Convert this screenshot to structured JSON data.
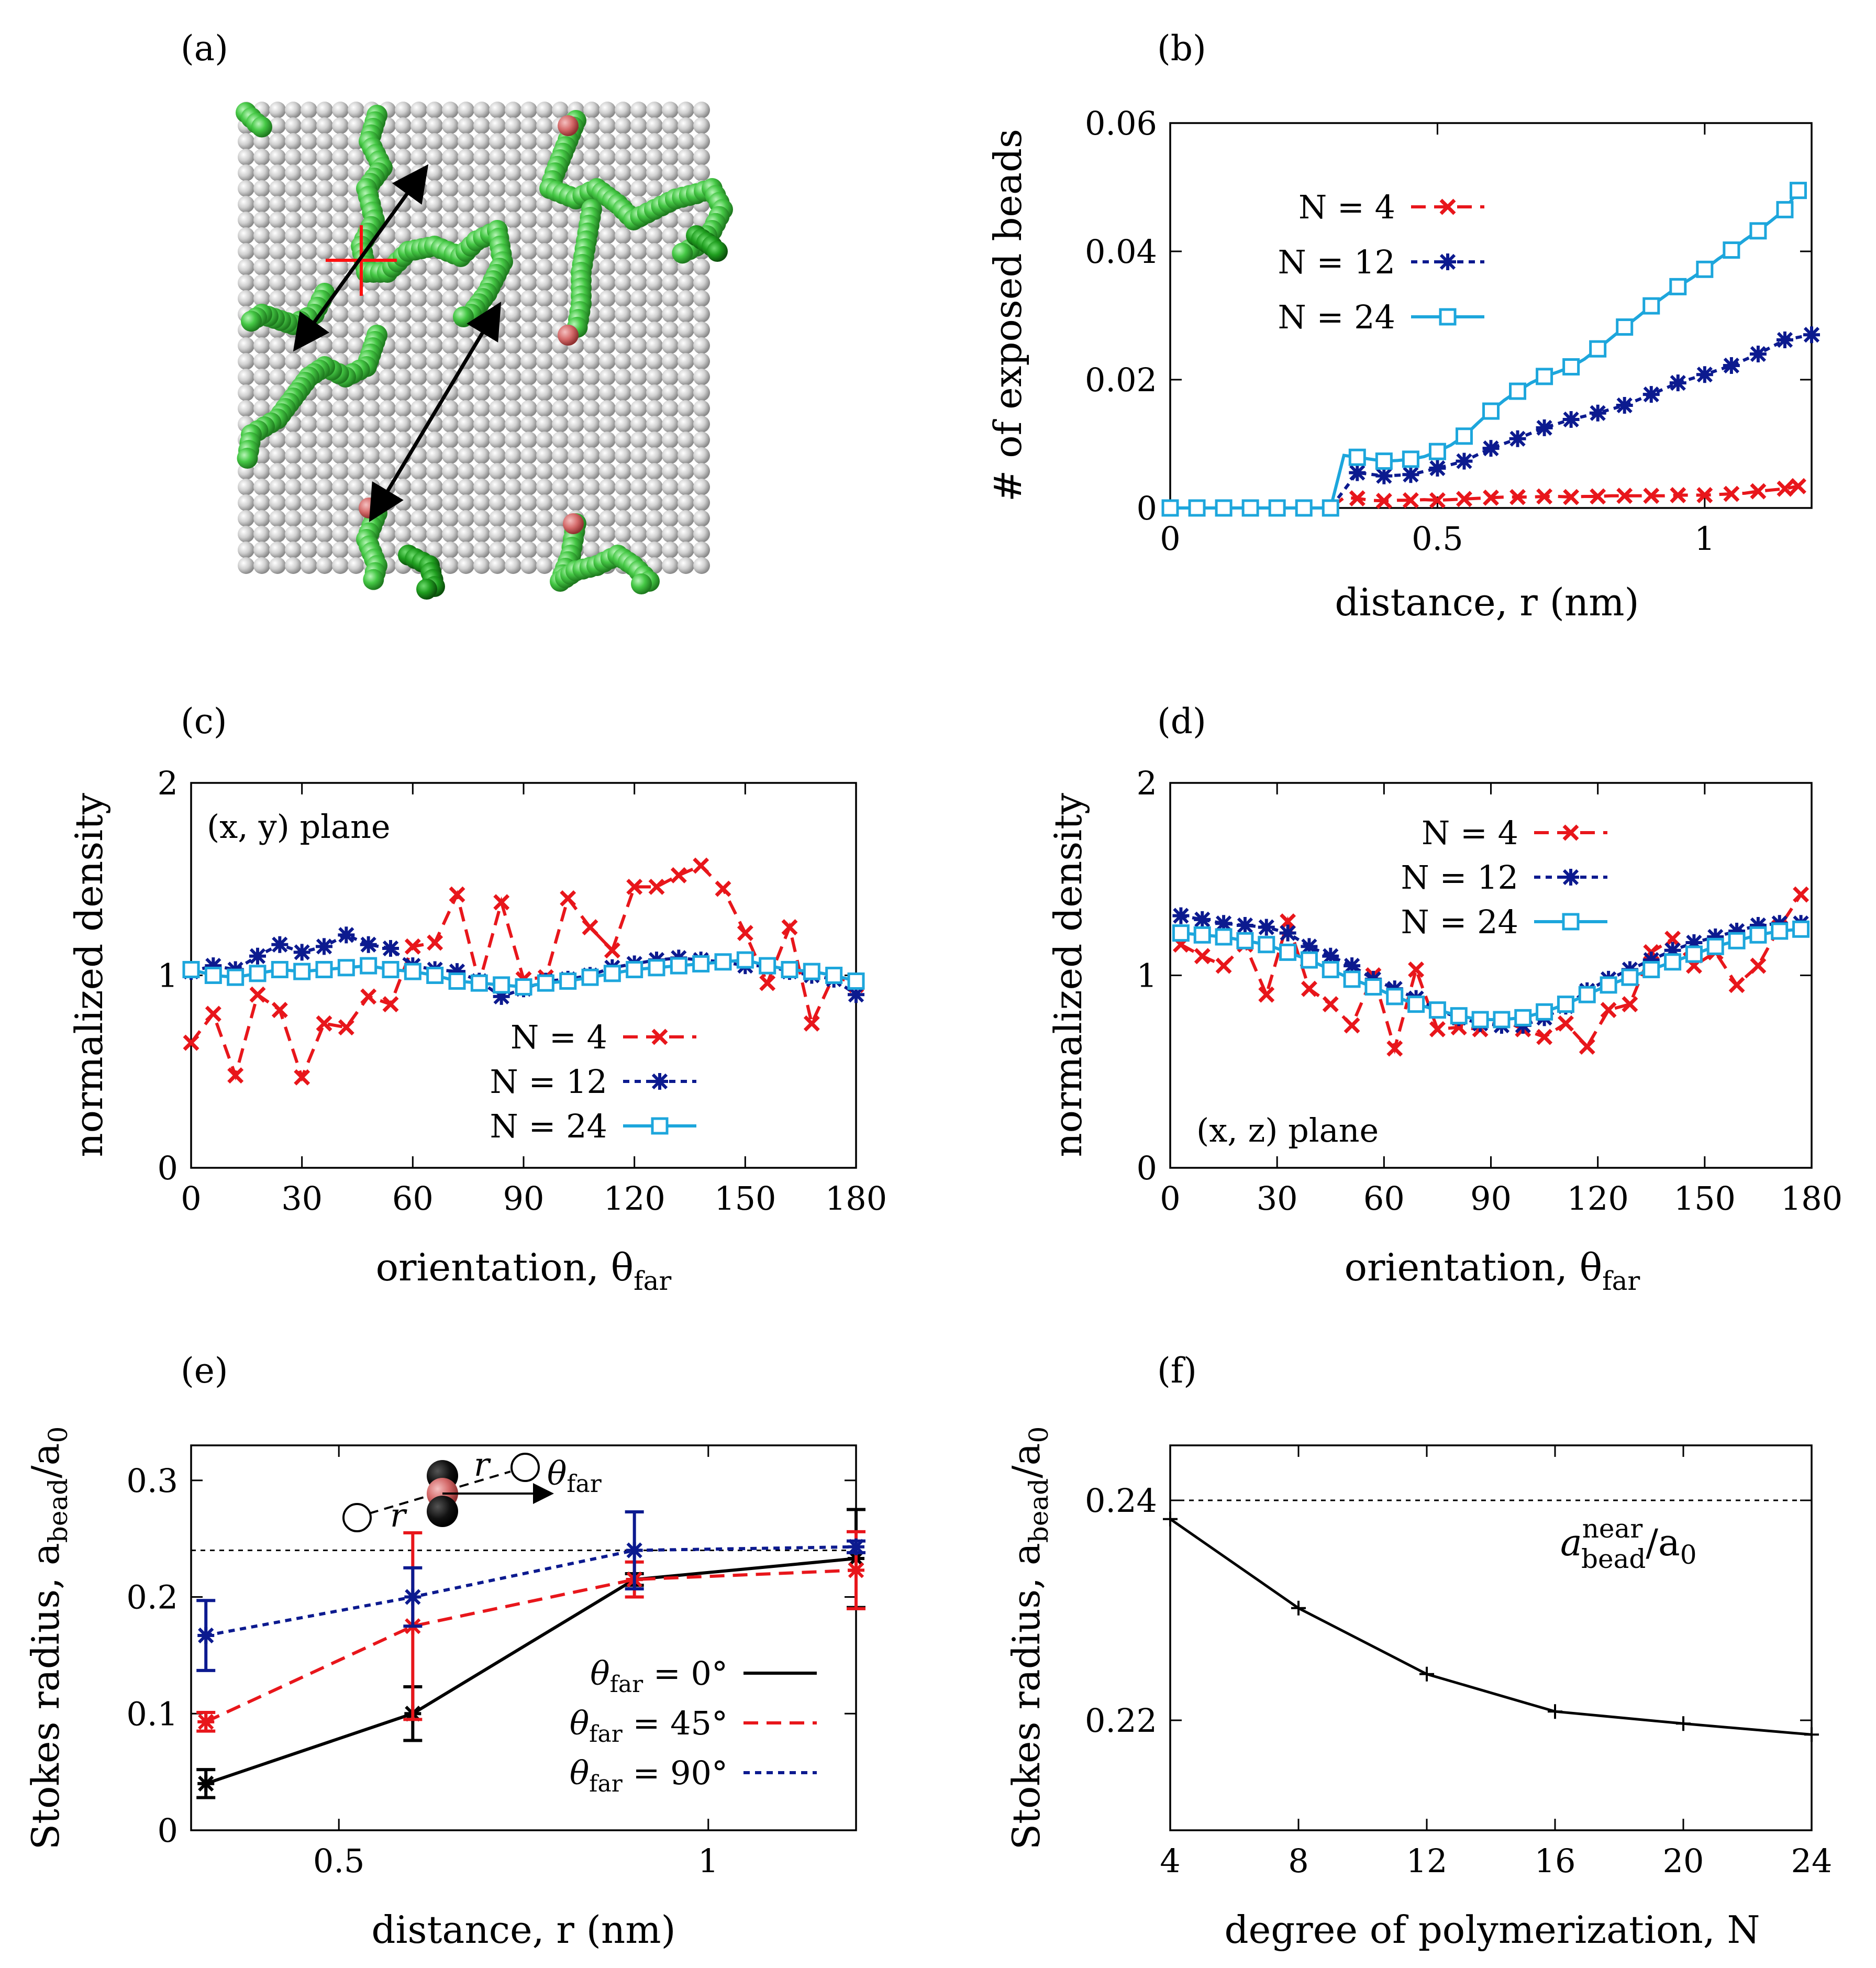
{
  "figure": {
    "panel_labels": [
      "(a)",
      "(b)",
      "(c)",
      "(d)",
      "(e)",
      "(f)"
    ]
  },
  "colors": {
    "n4": "#e8161b",
    "n12": "#0c1a8f",
    "n24": "#1da6dc",
    "black": "#000000",
    "sphere_gray": "#c8c8c8",
    "polymer_green": "#4bcf4b",
    "polymer_red": "#d66a6a"
  },
  "panel_a": {
    "description_icons": [
      "gray-bead-surface",
      "green-polymer-chains",
      "red-cross-marker",
      "double-arrows"
    ]
  },
  "chart_data": [
    {
      "id": "b",
      "type": "line",
      "title": "",
      "xlabel": "distance, r (nm)",
      "ylabel": "# of exposed beads",
      "xlim": [
        0,
        1.2
      ],
      "ylim": [
        0,
        0.06
      ],
      "xticks": [
        0,
        0.5,
        1
      ],
      "xtick_labels": [
        "0",
        "0.5",
        "1"
      ],
      "yticks": [
        0,
        0.02,
        0.04,
        0.06
      ],
      "ytick_labels": [
        "0",
        "0.02",
        "0.04",
        "0.06"
      ],
      "legend_position": "upper-left",
      "series": [
        {
          "name": "N = 4",
          "legend_label": "N = 4",
          "color_key": "n4",
          "marker": "x",
          "dash": "dashed",
          "x": [
            0,
            0.025,
            0.05,
            0.075,
            0.1,
            0.125,
            0.15,
            0.175,
            0.2,
            0.225,
            0.25,
            0.275,
            0.3,
            0.325,
            0.35,
            0.375,
            0.4,
            0.425,
            0.45,
            0.475,
            0.5,
            0.525,
            0.55,
            0.575,
            0.6,
            0.625,
            0.65,
            0.675,
            0.7,
            0.725,
            0.75,
            0.775,
            0.8,
            0.825,
            0.85,
            0.875,
            0.9,
            0.925,
            0.95,
            0.975,
            1.0,
            1.025,
            1.05,
            1.075,
            1.1,
            1.125,
            1.15,
            1.175
          ],
          "y": [
            0,
            0,
            0,
            0,
            0,
            0,
            0,
            0,
            0,
            0,
            0,
            0,
            0,
            0.0016,
            0.0015,
            0.0012,
            0.0011,
            0.0012,
            0.0012,
            0.0013,
            0.0012,
            0.0013,
            0.0014,
            0.0015,
            0.0016,
            0.0017,
            0.0017,
            0.0017,
            0.0018,
            0.0018,
            0.0017,
            0.0018,
            0.0018,
            0.0019,
            0.0019,
            0.0019,
            0.0019,
            0.0019,
            0.002,
            0.002,
            0.002,
            0.0021,
            0.0022,
            0.0023,
            0.0026,
            0.0028,
            0.003,
            0.0034
          ],
          "show_every": 2
        },
        {
          "name": "N = 12",
          "legend_label": "N = 12",
          "color_key": "n12",
          "marker": "star",
          "dash": "dotted",
          "x": [
            0,
            0.05,
            0.1,
            0.15,
            0.2,
            0.25,
            0.3,
            0.35,
            0.4,
            0.45,
            0.5,
            0.55,
            0.6,
            0.65,
            0.7,
            0.75,
            0.8,
            0.85,
            0.9,
            0.95,
            1.0,
            1.05,
            1.1,
            1.15,
            1.2
          ],
          "y": [
            0,
            0,
            0,
            0,
            0,
            0,
            0,
            0.0055,
            0.005,
            0.0052,
            0.0062,
            0.0073,
            0.0093,
            0.0108,
            0.0125,
            0.0138,
            0.0148,
            0.016,
            0.0177,
            0.0195,
            0.0208,
            0.0222,
            0.024,
            0.0262,
            0.027
          ]
        },
        {
          "name": "N = 24",
          "legend_label": "N = 24",
          "color_key": "n24",
          "marker": "square",
          "dash": "solid",
          "x": [
            0,
            0.025,
            0.05,
            0.075,
            0.1,
            0.125,
            0.15,
            0.175,
            0.2,
            0.225,
            0.25,
            0.275,
            0.3,
            0.325,
            0.35,
            0.375,
            0.4,
            0.425,
            0.45,
            0.475,
            0.5,
            0.525,
            0.55,
            0.575,
            0.6,
            0.625,
            0.65,
            0.675,
            0.7,
            0.725,
            0.75,
            0.775,
            0.8,
            0.825,
            0.85,
            0.875,
            0.9,
            0.925,
            0.95,
            0.975,
            1.0,
            1.025,
            1.05,
            1.075,
            1.1,
            1.125,
            1.15,
            1.175
          ],
          "y": [
            0,
            0,
            0,
            0,
            0,
            0,
            0,
            0,
            0,
            0,
            0,
            0,
            0,
            0.0082,
            0.0079,
            0.0076,
            0.0073,
            0.0074,
            0.0076,
            0.008,
            0.0088,
            0.0098,
            0.0112,
            0.0132,
            0.0151,
            0.0168,
            0.0182,
            0.0195,
            0.0205,
            0.0212,
            0.022,
            0.0232,
            0.0248,
            0.0265,
            0.0282,
            0.0298,
            0.0315,
            0.033,
            0.0345,
            0.0358,
            0.0372,
            0.0388,
            0.0402,
            0.0418,
            0.0432,
            0.0448,
            0.0465,
            0.0495
          ],
          "show_every": 2
        }
      ]
    },
    {
      "id": "c",
      "type": "line",
      "xlabel": "orientation, θ",
      "xlabel_sub": "far",
      "ylabel": "normalized density",
      "annotation": "(x, y) plane",
      "xlim": [
        0,
        180
      ],
      "ylim": [
        0,
        2
      ],
      "xticks": [
        0,
        30,
        60,
        90,
        120,
        150,
        180
      ],
      "xtick_labels": [
        "0",
        "30",
        "60",
        "90",
        "120",
        "150",
        "180"
      ],
      "yticks": [
        0,
        1,
        2
      ],
      "ytick_labels": [
        "0",
        "1",
        "2"
      ],
      "legend_position": "lower-center",
      "series": [
        {
          "name": "N = 4",
          "legend_label": "N = 4",
          "color_key": "n4",
          "marker": "x",
          "dash": "dashed",
          "x": [
            0,
            6,
            12,
            18,
            24,
            30,
            36,
            42,
            48,
            54,
            60,
            66,
            72,
            78,
            84,
            90,
            96,
            102,
            108,
            114,
            120,
            126,
            132,
            138,
            144,
            150,
            156,
            162,
            168,
            174,
            180
          ],
          "y": [
            0.65,
            0.8,
            0.48,
            0.9,
            0.82,
            0.47,
            0.75,
            0.73,
            0.89,
            0.85,
            1.15,
            1.17,
            1.42,
            0.96,
            1.38,
            0.98,
            0.99,
            1.4,
            1.25,
            1.13,
            1.46,
            1.46,
            1.52,
            1.57,
            1.45,
            1.22,
            0.96,
            1.25,
            0.75,
            1.0,
            0.95
          ]
        },
        {
          "name": "N = 12",
          "legend_label": "N = 12",
          "color_key": "n12",
          "marker": "star",
          "dash": "dotted",
          "x": [
            0,
            6,
            12,
            18,
            24,
            30,
            36,
            42,
            48,
            54,
            60,
            66,
            72,
            78,
            84,
            90,
            96,
            102,
            108,
            114,
            120,
            126,
            132,
            138,
            144,
            150,
            156,
            162,
            168,
            174,
            180
          ],
          "y": [
            1.02,
            1.05,
            1.03,
            1.1,
            1.16,
            1.12,
            1.15,
            1.21,
            1.16,
            1.14,
            1.05,
            1.03,
            1.02,
            0.97,
            0.89,
            0.93,
            0.97,
            0.98,
            1.0,
            1.04,
            1.06,
            1.08,
            1.09,
            1.08,
            1.07,
            1.05,
            1.05,
            1.02,
            1.0,
            0.98,
            0.9
          ]
        },
        {
          "name": "N = 24",
          "legend_label": "N = 24",
          "color_key": "n24",
          "marker": "square",
          "dash": "solid",
          "x": [
            0,
            6,
            12,
            18,
            24,
            30,
            36,
            42,
            48,
            54,
            60,
            66,
            72,
            78,
            84,
            90,
            96,
            102,
            108,
            114,
            120,
            126,
            132,
            138,
            144,
            150,
            156,
            162,
            168,
            174,
            180
          ],
          "y": [
            1.03,
            1.0,
            0.99,
            1.01,
            1.03,
            1.02,
            1.03,
            1.04,
            1.05,
            1.03,
            1.02,
            1.0,
            0.97,
            0.96,
            0.95,
            0.94,
            0.96,
            0.97,
            0.99,
            1.01,
            1.03,
            1.04,
            1.05,
            1.06,
            1.07,
            1.08,
            1.05,
            1.03,
            1.02,
            1.0,
            0.97
          ]
        }
      ]
    },
    {
      "id": "d",
      "type": "line",
      "xlabel": "orientation, θ",
      "xlabel_sub": "far",
      "ylabel": "normalized density",
      "annotation": "(x, z) plane",
      "xlim": [
        0,
        180
      ],
      "ylim": [
        0,
        2
      ],
      "xticks": [
        0,
        30,
        60,
        90,
        120,
        150,
        180
      ],
      "xtick_labels": [
        "0",
        "30",
        "60",
        "90",
        "120",
        "150",
        "180"
      ],
      "yticks": [
        0,
        1,
        2
      ],
      "ytick_labels": [
        "0",
        "1",
        "2"
      ],
      "legend_position": "upper-right",
      "series": [
        {
          "name": "N = 4",
          "legend_label": "N = 4",
          "color_key": "n4",
          "marker": "x",
          "dash": "dashed",
          "x": [
            3,
            9,
            15,
            21,
            27,
            33,
            39,
            45,
            51,
            57,
            63,
            69,
            75,
            81,
            87,
            93,
            99,
            105,
            111,
            117,
            123,
            129,
            135,
            141,
            147,
            153,
            159,
            165,
            171,
            177
          ],
          "y": [
            1.16,
            1.1,
            1.05,
            1.16,
            0.9,
            1.28,
            0.93,
            0.85,
            0.74,
            1.0,
            0.62,
            1.03,
            0.72,
            0.73,
            0.72,
            0.77,
            0.72,
            0.68,
            0.75,
            0.63,
            0.82,
            0.85,
            1.12,
            1.19,
            1.05,
            1.12,
            0.95,
            1.05,
            1.25,
            1.42
          ]
        },
        {
          "name": "N = 12",
          "legend_label": "N = 12",
          "color_key": "n12",
          "marker": "star",
          "dash": "dotted",
          "x": [
            3,
            9,
            15,
            21,
            27,
            33,
            39,
            45,
            51,
            57,
            63,
            69,
            75,
            81,
            87,
            93,
            99,
            105,
            111,
            117,
            123,
            129,
            135,
            141,
            147,
            153,
            159,
            165,
            171,
            177
          ],
          "y": [
            1.31,
            1.29,
            1.27,
            1.26,
            1.25,
            1.22,
            1.15,
            1.1,
            1.05,
            0.98,
            0.93,
            0.88,
            0.82,
            0.78,
            0.75,
            0.74,
            0.74,
            0.78,
            0.84,
            0.92,
            0.98,
            1.03,
            1.08,
            1.13,
            1.17,
            1.2,
            1.23,
            1.26,
            1.27,
            1.27
          ]
        },
        {
          "name": "N = 24",
          "legend_label": "N = 24",
          "color_key": "n24",
          "marker": "square",
          "dash": "solid",
          "x": [
            3,
            9,
            15,
            21,
            27,
            33,
            39,
            45,
            51,
            57,
            63,
            69,
            75,
            81,
            87,
            93,
            99,
            105,
            111,
            117,
            123,
            129,
            135,
            141,
            147,
            153,
            159,
            165,
            171,
            177
          ],
          "y": [
            1.22,
            1.21,
            1.2,
            1.18,
            1.16,
            1.12,
            1.08,
            1.03,
            0.98,
            0.94,
            0.89,
            0.85,
            0.82,
            0.79,
            0.77,
            0.77,
            0.78,
            0.81,
            0.85,
            0.9,
            0.95,
            0.99,
            1.03,
            1.07,
            1.11,
            1.15,
            1.18,
            1.21,
            1.23,
            1.24
          ]
        }
      ]
    },
    {
      "id": "e",
      "type": "line",
      "xlabel": "distance, r (nm)",
      "ylabel": "Stokes radius, a",
      "ylabel_sub": "bead",
      "ylabel_tail": "/a",
      "ylabel_tail_sub": "0",
      "xlim": [
        0.3,
        1.2
      ],
      "ylim": [
        0,
        0.33
      ],
      "xticks": [
        0.5,
        1
      ],
      "xtick_labels": [
        "0.5",
        "1"
      ],
      "yticks": [
        0,
        0.1,
        0.2,
        0.3
      ],
      "ytick_labels": [
        "0",
        "0.1",
        "0.2",
        "0.3"
      ],
      "reference_line": 0.24,
      "legend_position": "lower-right",
      "inset_labels": {
        "r_left": "r",
        "r_right": "r",
        "theta": "θ",
        "theta_sub": "far"
      },
      "series": [
        {
          "name": "θfar = 0°",
          "legend_label": "θ",
          "legend_sub": "far",
          "legend_tail": " = 0°",
          "color_key": "black",
          "dash": "solid",
          "x": [
            0.32,
            0.6,
            0.9,
            1.2
          ],
          "y": [
            0.04,
            0.1,
            0.215,
            0.233
          ],
          "err": [
            0.012,
            0.023,
            0.005,
            0.042
          ]
        },
        {
          "name": "θfar = 45°",
          "legend_label": "θ",
          "legend_sub": "far",
          "legend_tail": " = 45°",
          "color_key": "n4",
          "dash": "dashed",
          "x": [
            0.32,
            0.6,
            0.9,
            1.2
          ],
          "y": [
            0.093,
            0.175,
            0.215,
            0.223
          ],
          "err": [
            0.008,
            0.08,
            0.015,
            0.033
          ]
        },
        {
          "name": "θfar = 90°",
          "legend_label": "θ",
          "legend_sub": "far",
          "legend_tail": " = 90°",
          "color_key": "n12",
          "dash": "dotted",
          "x": [
            0.32,
            0.6,
            0.9,
            1.2
          ],
          "y": [
            0.167,
            0.2,
            0.24,
            0.243
          ],
          "err": [
            0.03,
            0.025,
            0.033,
            0.005
          ]
        }
      ]
    },
    {
      "id": "f",
      "type": "line",
      "xlabel": "degree of polymerization, N",
      "ylabel": "Stokes radius, a",
      "ylabel_sub": "bead",
      "ylabel_tail": "/a",
      "ylabel_tail_sub": "0",
      "xlim": [
        4,
        24
      ],
      "ylim": [
        0.21,
        0.245
      ],
      "xticks": [
        4,
        8,
        12,
        16,
        20,
        24
      ],
      "xtick_labels": [
        "4",
        "8",
        "12",
        "16",
        "20",
        "24"
      ],
      "yticks": [
        0.22,
        0.24
      ],
      "ytick_labels": [
        "0.22",
        "0.24"
      ],
      "reference_line": 0.24,
      "reference_label": {
        "main": "a",
        "sup": "near",
        "sub": "bead",
        "tail": "/a",
        "tail_sub": "0"
      },
      "series": [
        {
          "name": "Stokes radius",
          "color_key": "black",
          "dash": "solid",
          "x": [
            4,
            8,
            12,
            16,
            20,
            24
          ],
          "y": [
            0.2383,
            0.2302,
            0.2242,
            0.2208,
            0.2197,
            0.2187
          ]
        }
      ]
    }
  ]
}
